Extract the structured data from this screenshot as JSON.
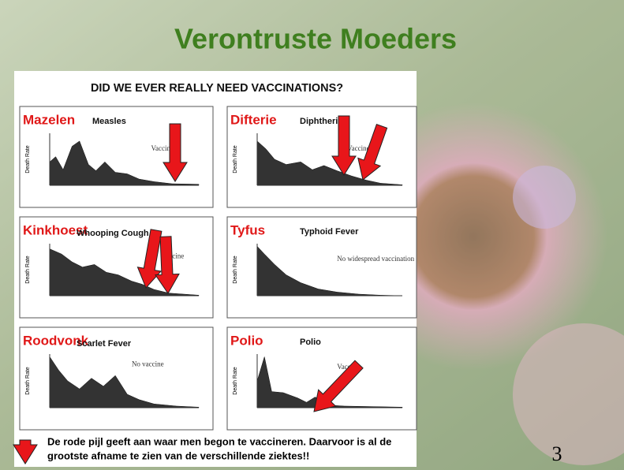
{
  "slide": {
    "title": "Verontruste Moeders",
    "figure_title": "DID WE EVER REALLY NEED VACCINATIONS?",
    "panels": [
      {
        "label": "Mazelen",
        "subtitle": "Measles",
        "y_label": "Death Rate",
        "note": "Vaccine"
      },
      {
        "label": "Difterie",
        "subtitle": "Diphtheria",
        "y_label": "Death Rate",
        "note": "Vaccine"
      },
      {
        "label": "Kinkhoest",
        "subtitle": "Whooping Cough",
        "y_label": "Death Rate",
        "note": "Vaccine"
      },
      {
        "label": "Tyfus",
        "subtitle": "Typhoid Fever",
        "y_label": "Death Rate",
        "note": "No widespread vaccination"
      },
      {
        "label": "Roodvonk",
        "subtitle": "Scarlet Fever",
        "y_label": "Death Rate",
        "note": "No vaccine"
      },
      {
        "label": "Polio",
        "subtitle": "Polio",
        "y_label": "Death Rate",
        "note": "Vaccine"
      }
    ],
    "footer": [
      "De rode pijl geeft aan waar men begon te vaccineren. Daarvoor is al de",
      "grootste afname te zien van de verschillende ziektes!!"
    ],
    "page_number": "3"
  }
}
